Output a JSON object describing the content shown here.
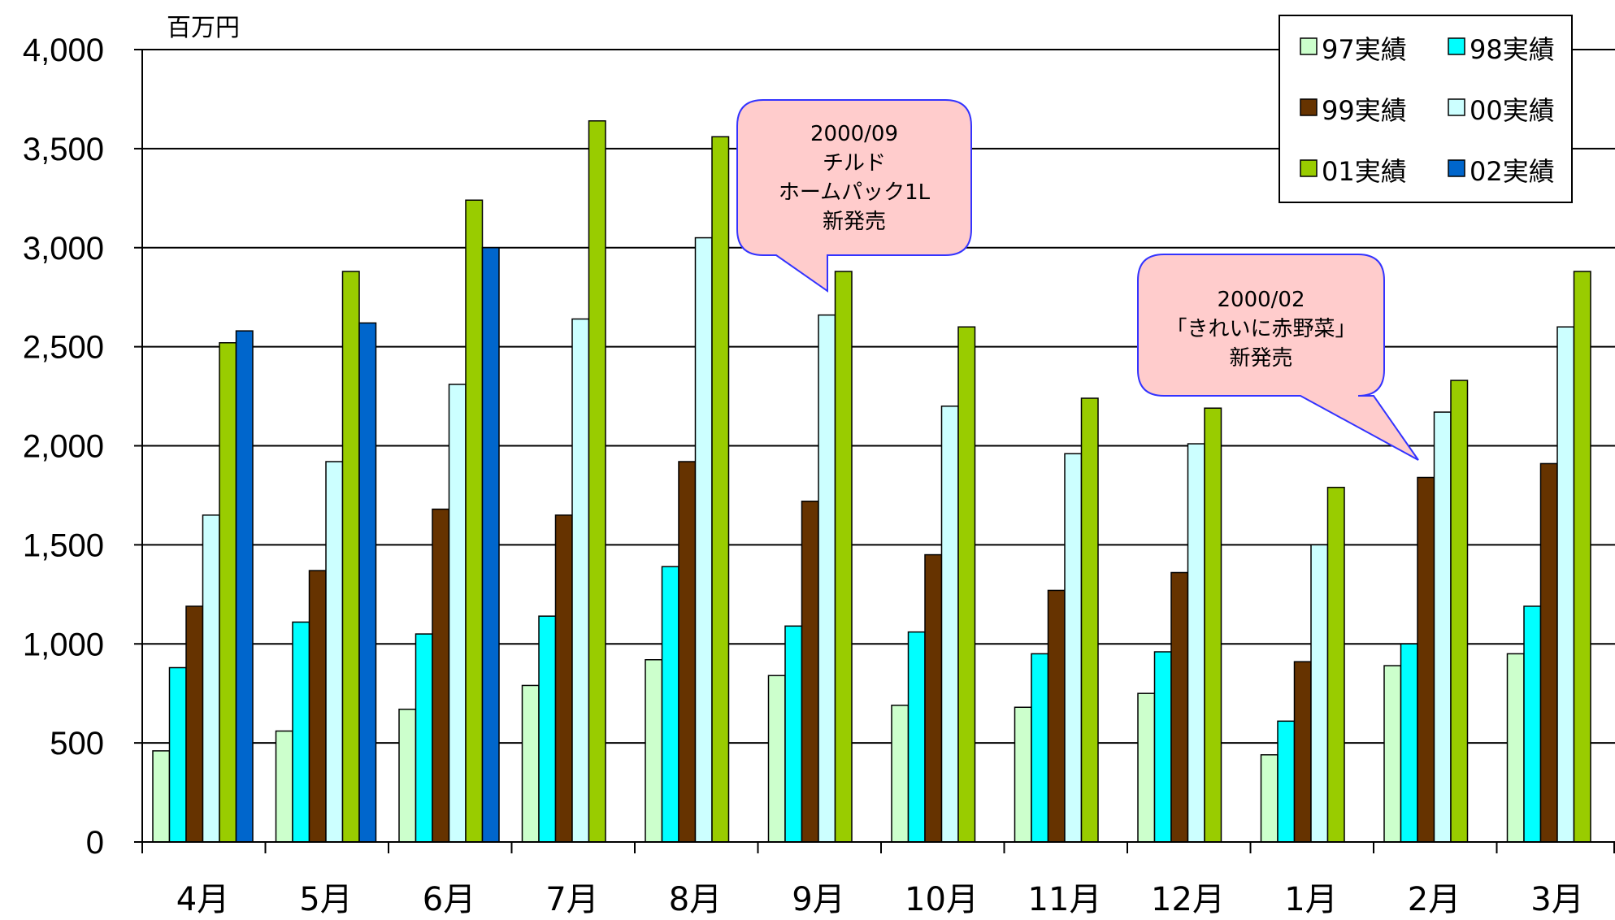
{
  "chart_data": {
    "type": "bar",
    "unit_label": "百万円",
    "categories": [
      "4月",
      "5月",
      "6月",
      "7月",
      "8月",
      "9月",
      "10月",
      "11月",
      "12月",
      "1月",
      "2月",
      "3月"
    ],
    "ylim": [
      0,
      4000
    ],
    "yticks": [
      0,
      500,
      1000,
      1500,
      2000,
      2500,
      3000,
      3500,
      4000
    ],
    "ytick_labels": [
      "0",
      "500",
      "1,000",
      "1,500",
      "2,000",
      "2,500",
      "3,000",
      "3,500",
      "4,000"
    ],
    "grid": true,
    "legend_position": "top-right",
    "series": [
      {
        "name": "97実績",
        "color": "#ccffcc",
        "values": [
          460,
          560,
          670,
          790,
          920,
          840,
          690,
          680,
          750,
          440,
          890,
          950
        ]
      },
      {
        "name": "98実績",
        "color": "#00ffff",
        "values": [
          880,
          1110,
          1050,
          1140,
          1390,
          1090,
          1060,
          950,
          960,
          610,
          1000,
          1190
        ]
      },
      {
        "name": "99実績",
        "color": "#663300",
        "values": [
          1190,
          1370,
          1680,
          1650,
          1920,
          1720,
          1450,
          1270,
          1360,
          910,
          1840,
          1910
        ]
      },
      {
        "name": "00実績",
        "color": "#ccffff",
        "values": [
          1650,
          1920,
          2310,
          2640,
          3050,
          2660,
          2200,
          1960,
          2010,
          1500,
          2170,
          2600
        ]
      },
      {
        "name": "01実績",
        "color": "#99cc00",
        "values": [
          2520,
          2880,
          3240,
          3640,
          3560,
          2880,
          2600,
          2240,
          2190,
          1790,
          2330,
          2880
        ]
      },
      {
        "name": "02実績",
        "color": "#0066cc",
        "values": [
          2580,
          2620,
          3000,
          null,
          null,
          null,
          null,
          null,
          null,
          null,
          null,
          null
        ]
      }
    ],
    "annotations": [
      {
        "lines": [
          "2000/09",
          "チルド",
          "ホームパック1L",
          "新発売"
        ],
        "fill": "#ffcccc",
        "border": "#3333ff"
      },
      {
        "lines": [
          "2000/02",
          "｢きれいに赤野菜｣",
          "新発売"
        ],
        "fill": "#ffcccc",
        "border": "#3333ff"
      }
    ]
  }
}
